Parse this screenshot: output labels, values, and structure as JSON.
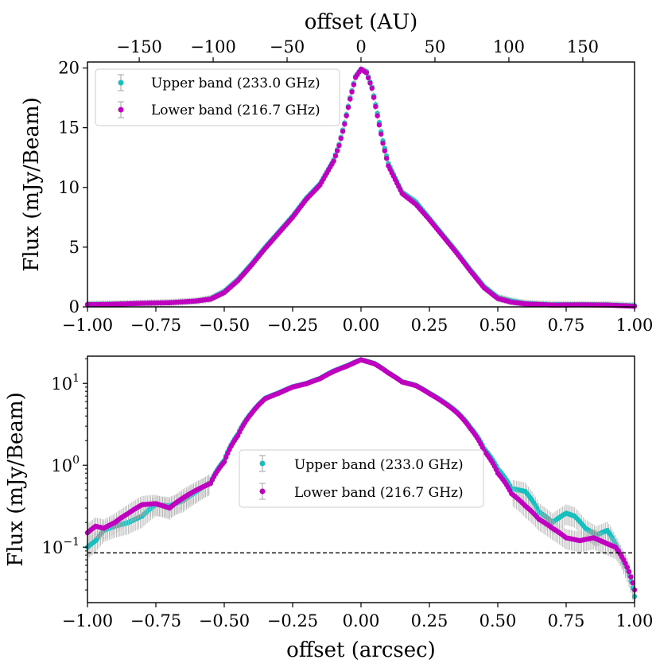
{
  "figure": {
    "top_xlabel": "offset (AU)",
    "bottom_xlabel": "offset (arcsec)"
  },
  "colors": {
    "upper": "#17bfbf",
    "lower": "#bf00bf",
    "errorbar": "#b0b0b0",
    "noise_line": "#000000"
  },
  "chart_data": [
    {
      "type": "line",
      "scale": "linear",
      "title": "",
      "xlabel": "",
      "ylabel": "Flux (mJy/Beam)",
      "xlim": [
        -1.0,
        1.0
      ],
      "ylim": [
        0,
        20.5
      ],
      "xticks": [
        -1.0,
        -0.75,
        -0.5,
        -0.25,
        0.0,
        0.25,
        0.5,
        0.75,
        1.0
      ],
      "xtick_labels": [
        "−1.00",
        "−0.75",
        "−0.50",
        "−0.25",
        "0.00",
        "0.25",
        "0.50",
        "0.75",
        "1.00"
      ],
      "yticks": [
        0,
        5,
        10,
        15,
        20
      ],
      "ytick_labels": [
        "0",
        "5",
        "10",
        "15",
        "20"
      ],
      "top_axis": {
        "label": "offset (AU)",
        "au_per_arcsec": 185,
        "ticks": [
          -150,
          -100,
          -50,
          0,
          50,
          100,
          150
        ],
        "tick_labels": [
          "−150",
          "−100",
          "−50",
          "0",
          "50",
          "100",
          "150"
        ]
      },
      "legend": {
        "position": "upper-left",
        "entries": [
          "Upper band (233.0 GHz)",
          "Lower band (216.7 GHz)"
        ]
      },
      "series": [
        {
          "name": "Upper band (233.0 GHz)",
          "color": "upper",
          "x": [
            -1.0,
            -0.9,
            -0.8,
            -0.7,
            -0.6,
            -0.55,
            -0.5,
            -0.45,
            -0.4,
            -0.35,
            -0.3,
            -0.25,
            -0.2,
            -0.15,
            -0.1,
            -0.08,
            -0.06,
            -0.04,
            -0.02,
            0.0,
            0.02,
            0.04,
            0.06,
            0.08,
            0.1,
            0.15,
            0.2,
            0.25,
            0.3,
            0.35,
            0.4,
            0.45,
            0.5,
            0.55,
            0.6,
            0.7,
            0.8,
            0.9,
            1.0
          ],
          "y": [
            0.22,
            0.25,
            0.3,
            0.35,
            0.5,
            0.7,
            1.3,
            2.3,
            3.6,
            5.0,
            6.3,
            7.6,
            9.1,
            10.3,
            12.3,
            13.6,
            15.4,
            17.5,
            19.3,
            19.9,
            19.7,
            18.4,
            16.2,
            13.9,
            12.0,
            9.6,
            8.8,
            7.4,
            6.0,
            4.6,
            3.1,
            1.7,
            0.8,
            0.5,
            0.3,
            0.2,
            0.2,
            0.18,
            0.1
          ],
          "error": 0.3
        },
        {
          "name": "Lower band (216.7 GHz)",
          "color": "lower",
          "x": [
            -1.0,
            -0.9,
            -0.8,
            -0.7,
            -0.6,
            -0.55,
            -0.5,
            -0.45,
            -0.4,
            -0.35,
            -0.3,
            -0.25,
            -0.2,
            -0.15,
            -0.1,
            -0.08,
            -0.06,
            -0.04,
            -0.02,
            0.0,
            0.02,
            0.04,
            0.06,
            0.08,
            0.1,
            0.15,
            0.2,
            0.25,
            0.3,
            0.35,
            0.4,
            0.45,
            0.5,
            0.55,
            0.6,
            0.7,
            0.8,
            0.9,
            1.0
          ],
          "y": [
            0.18,
            0.22,
            0.3,
            0.35,
            0.5,
            0.65,
            1.2,
            2.2,
            3.5,
            4.9,
            6.2,
            7.5,
            9.0,
            10.2,
            12.2,
            13.5,
            15.3,
            17.4,
            19.2,
            19.9,
            19.6,
            18.3,
            16.0,
            13.7,
            11.8,
            9.5,
            8.6,
            7.3,
            5.9,
            4.5,
            3.0,
            1.6,
            0.7,
            0.4,
            0.25,
            0.15,
            0.17,
            0.15,
            0.05
          ],
          "error": 0.3
        }
      ]
    },
    {
      "type": "line",
      "scale": "log",
      "title": "",
      "xlabel": "offset (arcsec)",
      "ylabel": "Flux (mJy/Beam)",
      "xlim": [
        -1.0,
        1.0
      ],
      "ylim": [
        0.021,
        21.5
      ],
      "xticks": [
        -1.0,
        -0.75,
        -0.5,
        -0.25,
        0.0,
        0.25,
        0.5,
        0.75,
        1.0
      ],
      "xtick_labels": [
        "−1.00",
        "−0.75",
        "−0.50",
        "−0.25",
        "0.00",
        "0.25",
        "0.50",
        "0.75",
        "1.00"
      ],
      "yticks": [
        0.1,
        1,
        10
      ],
      "ytick_labels": [
        {
          "base": "10",
          "exp": "−1"
        },
        {
          "base": "10",
          "exp": "0"
        },
        {
          "base": "10",
          "exp": "1"
        }
      ],
      "noise_level": 0.085,
      "legend": {
        "position": "center",
        "entries": [
          "Upper band (233.0 GHz)",
          "Lower band (216.7 GHz)"
        ]
      },
      "series": [
        {
          "name": "Upper band (233.0 GHz)",
          "color": "upper",
          "x": [
            -1.0,
            -0.97,
            -0.94,
            -0.9,
            -0.85,
            -0.8,
            -0.75,
            -0.7,
            -0.65,
            -0.6,
            -0.55,
            -0.5,
            -0.45,
            -0.4,
            -0.35,
            -0.3,
            -0.25,
            -0.2,
            -0.15,
            -0.1,
            -0.05,
            0.0,
            0.05,
            0.1,
            0.15,
            0.2,
            0.25,
            0.3,
            0.35,
            0.4,
            0.45,
            0.5,
            0.55,
            0.6,
            0.65,
            0.7,
            0.75,
            0.78,
            0.82,
            0.86,
            0.9,
            0.93,
            0.96,
            0.98,
            1.0
          ],
          "y": [
            0.1,
            0.12,
            0.16,
            0.18,
            0.2,
            0.24,
            0.33,
            0.32,
            0.37,
            0.48,
            0.62,
            1.15,
            2.4,
            4.4,
            6.6,
            7.7,
            9.1,
            10.0,
            11.5,
            14.2,
            16.5,
            19.5,
            17.5,
            13.5,
            10.5,
            9.5,
            7.6,
            6.0,
            4.5,
            2.9,
            1.6,
            0.9,
            0.52,
            0.48,
            0.27,
            0.2,
            0.26,
            0.24,
            0.17,
            0.14,
            0.16,
            0.11,
            0.065,
            0.045,
            0.025
          ],
          "error": 0.02
        },
        {
          "name": "Lower band (216.7 GHz)",
          "color": "lower",
          "x": [
            -1.0,
            -0.97,
            -0.94,
            -0.9,
            -0.85,
            -0.8,
            -0.75,
            -0.7,
            -0.65,
            -0.6,
            -0.55,
            -0.5,
            -0.45,
            -0.4,
            -0.35,
            -0.3,
            -0.25,
            -0.2,
            -0.15,
            -0.1,
            -0.05,
            0.0,
            0.05,
            0.1,
            0.15,
            0.2,
            0.25,
            0.3,
            0.35,
            0.4,
            0.45,
            0.5,
            0.55,
            0.6,
            0.65,
            0.7,
            0.75,
            0.8,
            0.85,
            0.9,
            0.93,
            0.96,
            0.98,
            1.0
          ],
          "y": [
            0.15,
            0.18,
            0.17,
            0.2,
            0.26,
            0.33,
            0.34,
            0.3,
            0.4,
            0.5,
            0.6,
            1.1,
            2.3,
            4.3,
            6.5,
            7.6,
            9.0,
            9.9,
            11.4,
            14.0,
            16.3,
            19.4,
            17.3,
            13.4,
            10.4,
            9.4,
            7.5,
            5.9,
            4.4,
            2.8,
            1.5,
            0.8,
            0.45,
            0.32,
            0.22,
            0.17,
            0.13,
            0.12,
            0.13,
            0.11,
            0.1,
            0.07,
            0.05,
            0.03
          ],
          "error": 0.02
        }
      ]
    }
  ]
}
